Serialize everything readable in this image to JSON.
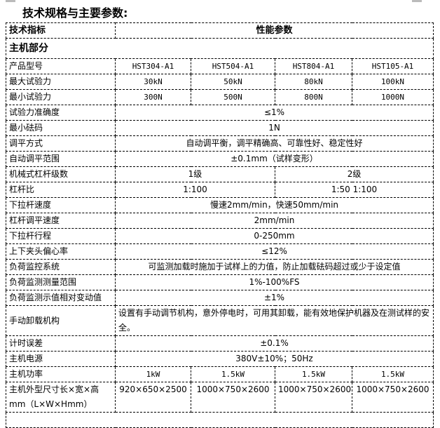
{
  "title": "技术规格与主要参数:",
  "header": {
    "col1": "技术指标",
    "col2": "性能参数"
  },
  "section": "主机部分",
  "rows": [
    {
      "label": "产品型号",
      "cells": [
        {
          "text": "HST304-A1",
          "span": 1
        },
        {
          "text": "HST504-A1",
          "span": 1
        },
        {
          "text": "HST804-A1",
          "span": 1
        },
        {
          "text": "HST105-A1",
          "span": 1
        }
      ]
    },
    {
      "label": "最大试验力",
      "cells": [
        {
          "text": "30kN",
          "span": 1
        },
        {
          "text": "50kN",
          "span": 1
        },
        {
          "text": "80kN",
          "span": 1
        },
        {
          "text": "100kN",
          "span": 1
        }
      ]
    },
    {
      "label": "最小试验力",
      "cells": [
        {
          "text": "300N",
          "span": 1
        },
        {
          "text": "500N",
          "span": 1
        },
        {
          "text": "800N",
          "span": 1
        },
        {
          "text": "1000N",
          "span": 1
        }
      ]
    },
    {
      "label": "试验力准确度",
      "cells": [
        {
          "text": "≤1%",
          "span": 4
        }
      ]
    },
    {
      "label": "最小砝码",
      "cells": [
        {
          "text": "1N",
          "span": 4
        }
      ]
    },
    {
      "label": "调平方式",
      "cells": [
        {
          "text": "自动调平衡，调平精确高、可靠性好、稳定性好",
          "span": 4
        }
      ]
    },
    {
      "label": "自动调平范围",
      "cells": [
        {
          "text": "±0.1mm（试样变形）",
          "span": 4
        }
      ]
    },
    {
      "label": "机械式杠杆级数",
      "cells": [
        {
          "text": "1级",
          "span": 2
        },
        {
          "text": "2级",
          "span": 2
        }
      ]
    },
    {
      "label": "杠杆比",
      "cells": [
        {
          "text": "1:100",
          "span": 2
        },
        {
          "text": "1:50   1:100",
          "span": 2
        }
      ]
    },
    {
      "label": "下拉杆速度",
      "cells": [
        {
          "text": "慢速2mm/min，快速50mm/min",
          "span": 4
        }
      ]
    },
    {
      "label": "杠杆调平速度",
      "cells": [
        {
          "text": "2mm/min",
          "span": 4
        }
      ]
    },
    {
      "label": "下拉杆行程",
      "cells": [
        {
          "text": "0-250mm",
          "span": 4
        }
      ]
    },
    {
      "label": "上下夹头偏心率",
      "cells": [
        {
          "text": "≤12%",
          "span": 4
        }
      ]
    },
    {
      "label": "负荷监控系统",
      "cells": [
        {
          "text": "可监测加载时施加于试样上的力值，防止加载砝码超过或少于设定值",
          "span": 4
        }
      ]
    },
    {
      "label": "负荷监测测量范围",
      "cells": [
        {
          "text": "1%-100%FS",
          "span": 4
        }
      ]
    },
    {
      "label": "负荷监测示值相对变动值",
      "cells": [
        {
          "text": "±1%",
          "span": 4
        }
      ]
    },
    {
      "label": "手动卸载机构",
      "cells": [
        {
          "text": "设置有手动调节机构，意外停电时，可用其卸载，能有效地保护机器及在测试样的安全。",
          "span": 4,
          "wrap": true
        }
      ]
    },
    {
      "label": "计时误差",
      "cells": [
        {
          "text": "±0.1%",
          "span": 4
        }
      ]
    },
    {
      "label": "主机电源",
      "cells": [
        {
          "text": "380V±10%；50Hz",
          "span": 4
        }
      ]
    },
    {
      "label": "主机功率",
      "cells": [
        {
          "text": "1kW",
          "span": 1
        },
        {
          "text": "1.5kW",
          "span": 1
        },
        {
          "text": "1.5kW",
          "span": 1
        },
        {
          "text": "1.5kW",
          "span": 1
        }
      ]
    },
    {
      "label": "主机外型尺寸长×宽×高mm（L×W×Hmm）",
      "cells": [
        {
          "text": "920×650×2500",
          "span": 1
        },
        {
          "text": "1000×750×2600",
          "span": 1
        },
        {
          "text": "1000×750×2600",
          "span": 1
        },
        {
          "text": "1000×750×2600",
          "span": 1
        }
      ],
      "tall": true
    }
  ]
}
